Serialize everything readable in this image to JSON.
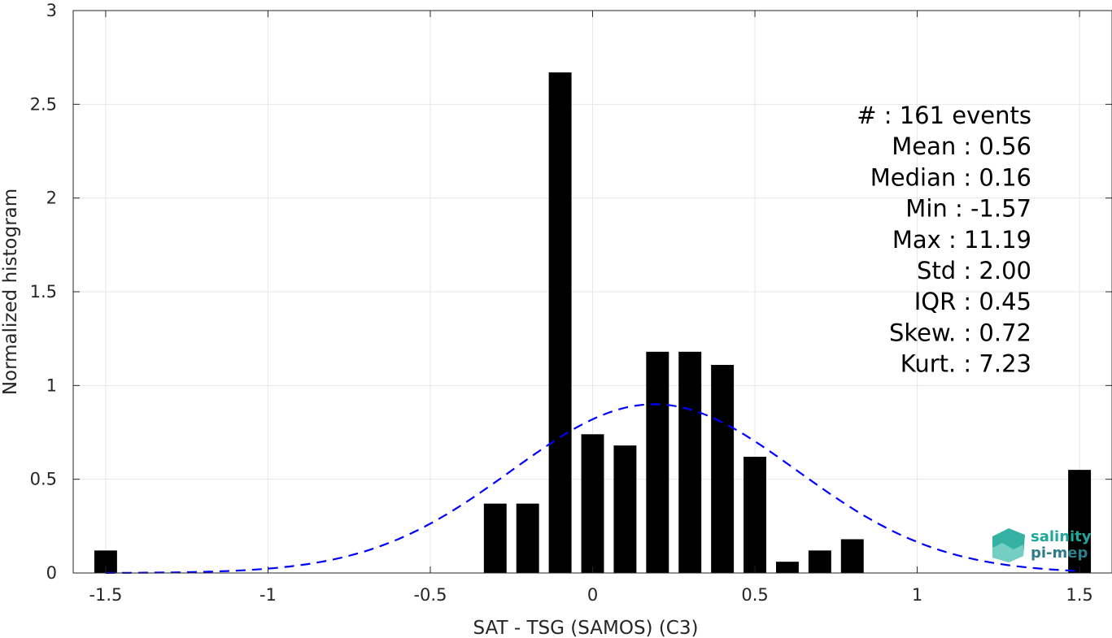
{
  "chart_data": {
    "type": "bar",
    "xlabel": "SAT - TSG (SAMOS) (C3)",
    "ylabel": "Normalized histogram",
    "xlim": [
      -1.6,
      1.6
    ],
    "ylim": [
      0,
      3
    ],
    "grid": true,
    "xticks": [
      -1.5,
      -1,
      -0.5,
      0,
      0.5,
      1,
      1.5
    ],
    "xtick_labels": [
      "-1.5",
      "-1",
      "-0.5",
      "0",
      "0.5",
      "1",
      "1.5"
    ],
    "yticks": [
      0,
      0.5,
      1,
      1.5,
      2,
      2.5,
      3
    ],
    "ytick_labels": [
      "0",
      "0.5",
      "1",
      "1.5",
      "2",
      "2.5",
      "3"
    ],
    "bar_width": 0.07,
    "bars": [
      {
        "x": -1.5,
        "y": 0.12
      },
      {
        "x": -0.3,
        "y": 0.37
      },
      {
        "x": -0.2,
        "y": 0.37
      },
      {
        "x": -0.1,
        "y": 2.67
      },
      {
        "x": 0.0,
        "y": 0.74
      },
      {
        "x": 0.1,
        "y": 0.68
      },
      {
        "x": 0.2,
        "y": 1.18
      },
      {
        "x": 0.3,
        "y": 1.18
      },
      {
        "x": 0.4,
        "y": 1.11
      },
      {
        "x": 0.5,
        "y": 0.62
      },
      {
        "x": 0.6,
        "y": 0.06
      },
      {
        "x": 0.7,
        "y": 0.12
      },
      {
        "x": 0.8,
        "y": 0.18
      },
      {
        "x": 1.5,
        "y": 0.55
      }
    ],
    "fit_curve": {
      "type": "gaussian",
      "mean": 0.19,
      "peak": 0.9,
      "sigma": 0.44,
      "x_range": [
        -1.5,
        1.5
      ],
      "color": "#0000ff",
      "style": "dashed"
    },
    "bar_color": "#000000",
    "stats": [
      "#  : 161 events",
      "Mean : 0.56",
      "Median : 0.16",
      "Min : -1.57",
      "Max : 11.19",
      "Std : 2.00",
      "IQR : 0.45",
      "Skew. : 0.72",
      "Kurt. : 7.23"
    ]
  },
  "logo": {
    "line1": "salinity",
    "line2": "pi-mep",
    "color_primary": "#1fa89a",
    "color_secondary": "#2e7d8c"
  }
}
